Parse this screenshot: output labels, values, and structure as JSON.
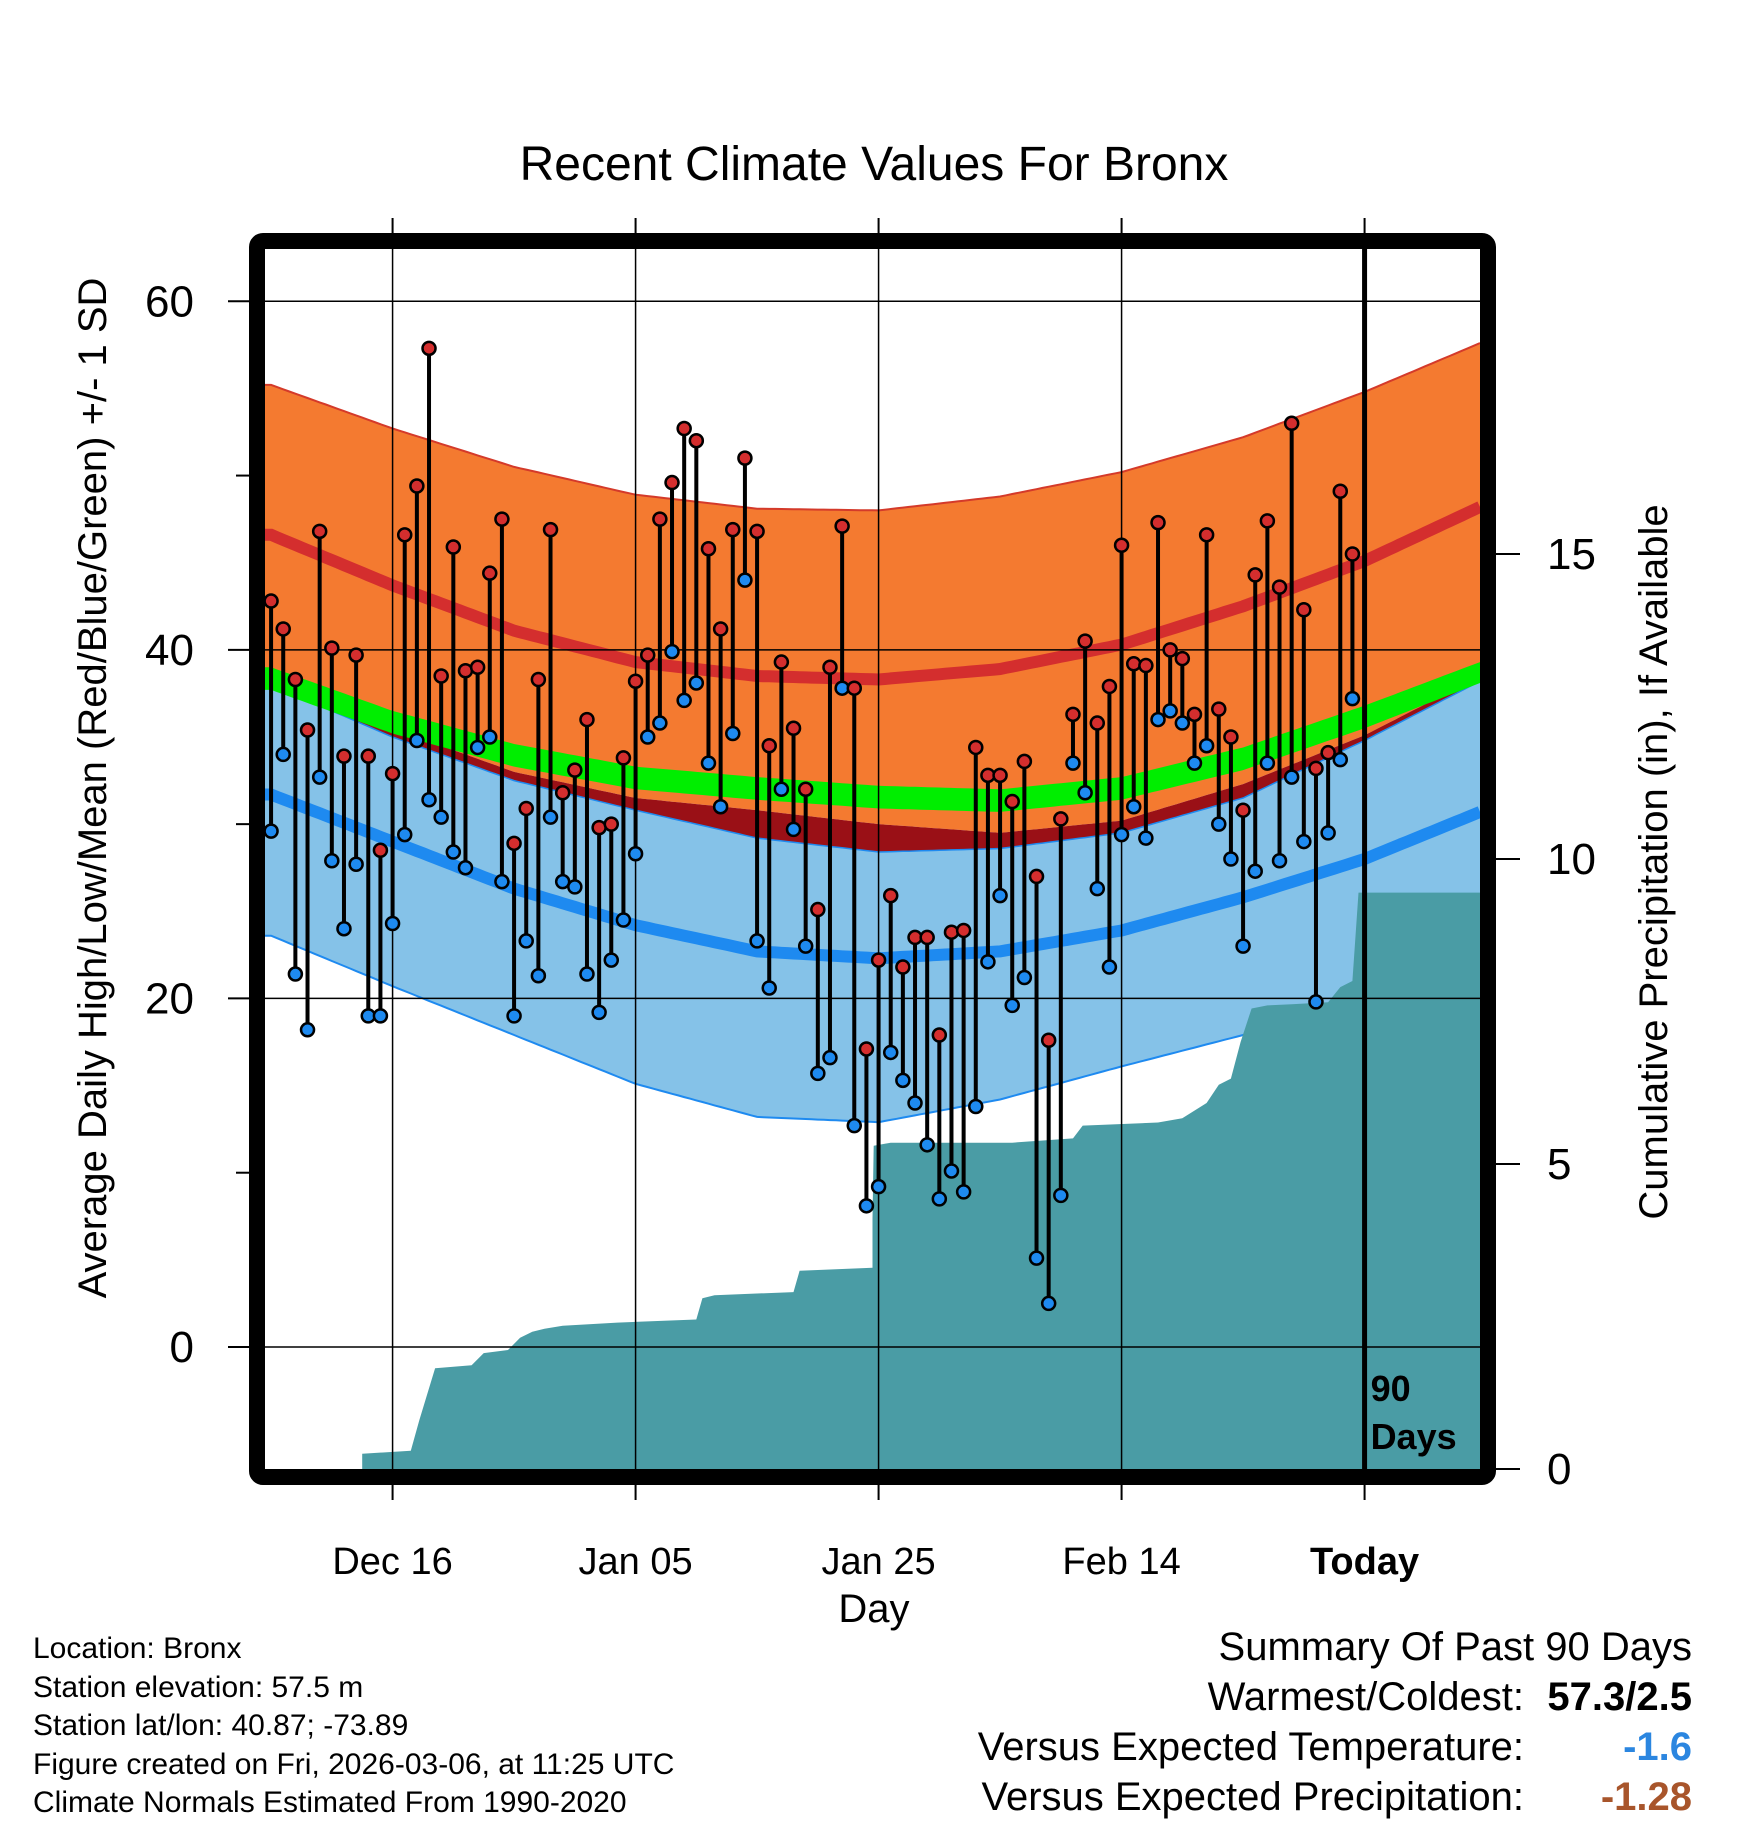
{
  "chart_data": {
    "type": "line",
    "title": "Recent Climate Values For Bronx",
    "xlabel": "Day",
    "ylabel": "Average Daily High/Low/Mean (Red/Blue/Green) +/- 1 SD",
    "ylabel_right": "Cumulative Precipitation (in), If Available",
    "x_ticks": [
      "Dec 16",
      "Jan 05",
      "Jan 25",
      "Feb 14",
      "Today"
    ],
    "x_tick_days": [
      10,
      30,
      50,
      70,
      90
    ],
    "xlim": [
      -0.5,
      99.5
    ],
    "ylim": [
      -7,
      63
    ],
    "y_ticks": [
      0,
      20,
      40,
      60
    ],
    "y_minor_ticks": [
      10,
      30,
      50
    ],
    "precip_ticks": [
      0,
      5,
      10,
      15
    ],
    "precip_ylim": [
      0,
      20
    ],
    "window_label": "90 Days",
    "series_colors": {
      "high_band": "#f47a30",
      "high_mean": "#d42e2e",
      "low_band": "#85c2e8",
      "low_mean": "#1e8af0",
      "mean_line": "#00ee00",
      "mean_band": "#9a1016",
      "precip": "#4a9ca5",
      "high_dot": "#d42e2e",
      "low_dot": "#1e8af0"
    },
    "normals": {
      "day": [
        0,
        10,
        20,
        30,
        40,
        50,
        60,
        70,
        80,
        90,
        99.5
      ],
      "high_upper": [
        55.2,
        52.7,
        50.5,
        48.9,
        48.1,
        48.0,
        48.8,
        50.2,
        52.2,
        54.8,
        57.6
      ],
      "high_mean": [
        46.6,
        43.7,
        41.1,
        39.3,
        38.5,
        38.3,
        38.9,
        40.3,
        42.5,
        45.1,
        48.2
      ],
      "high_lower": [
        38.5,
        35.5,
        33.0,
        31.5,
        30.8,
        30.0,
        29.5,
        30.2,
        32.3,
        35.1,
        38.5
      ],
      "mean_upper": [
        39.0,
        36.5,
        34.6,
        33.3,
        32.7,
        32.2,
        32.0,
        32.7,
        34.4,
        36.8,
        39.3
      ],
      "mean_lower": [
        37.7,
        35.2,
        33.3,
        32.0,
        31.4,
        30.9,
        30.7,
        31.4,
        33.1,
        35.5,
        38.1
      ],
      "low_upper": [
        38.0,
        35.0,
        32.5,
        30.8,
        29.2,
        28.4,
        28.6,
        29.5,
        31.5,
        34.8,
        38.2
      ],
      "low_mean": [
        31.7,
        29.0,
        26.3,
        24.2,
        22.7,
        22.3,
        22.7,
        23.9,
        25.8,
        28.0,
        30.7
      ],
      "low_lower": [
        23.6,
        20.7,
        17.9,
        15.1,
        13.2,
        12.9,
        14.2,
        16.1,
        17.9,
        20.2,
        22.9
      ]
    },
    "daily": {
      "high": [
        42.8,
        41.2,
        38.3,
        35.4,
        46.8,
        40.1,
        33.9,
        39.7,
        33.9,
        28.5,
        32.9,
        46.6,
        49.4,
        57.3,
        38.5,
        45.9,
        38.8,
        39.0,
        44.4,
        47.5,
        28.9,
        30.9,
        38.3,
        46.9,
        31.8,
        33.1,
        36.0,
        29.8,
        30.0,
        33.8,
        38.2,
        39.7,
        47.5,
        49.6,
        52.7,
        52.0,
        45.8,
        41.2,
        46.9,
        51.0,
        46.8,
        34.5,
        39.3,
        35.5,
        32.0,
        25.1,
        39.0,
        47.1,
        37.8,
        17.1,
        22.2,
        25.9,
        21.8,
        23.5,
        23.5,
        17.9,
        23.8,
        23.9,
        34.4,
        32.8,
        32.8,
        31.3,
        33.6,
        27.0,
        17.6,
        30.3,
        36.3,
        40.5,
        35.8,
        37.9,
        46.0,
        39.2,
        39.1,
        47.3,
        40.0,
        39.5,
        36.3,
        46.6,
        36.6,
        35.0,
        30.8,
        44.3,
        47.4,
        43.6,
        53.0,
        42.3,
        33.2,
        34.1,
        49.1,
        45.5
      ],
      "low": [
        29.6,
        34.0,
        21.4,
        18.2,
        32.7,
        27.9,
        24.0,
        27.7,
        19.0,
        19.0,
        24.3,
        29.4,
        34.8,
        31.4,
        30.4,
        28.4,
        27.5,
        34.4,
        35.0,
        26.7,
        19.0,
        23.3,
        21.3,
        30.4,
        26.7,
        26.4,
        21.4,
        19.2,
        22.2,
        24.5,
        28.3,
        35.0,
        35.8,
        39.9,
        37.1,
        38.1,
        33.5,
        31.0,
        35.2,
        44.0,
        23.3,
        20.6,
        32.0,
        29.7,
        23.0,
        15.7,
        16.6,
        37.8,
        12.7,
        8.1,
        9.2,
        16.9,
        15.3,
        14.0,
        11.6,
        8.5,
        10.1,
        8.9,
        13.8,
        22.1,
        25.9,
        19.6,
        21.2,
        5.1,
        2.5,
        8.7,
        33.5,
        31.8,
        26.3,
        21.8,
        29.4,
        31.0,
        29.2,
        36.0,
        36.5,
        35.8,
        33.5,
        34.5,
        30.0,
        28.0,
        23.0,
        27.3,
        33.5,
        27.9,
        32.7,
        29.0,
        19.8,
        29.5,
        33.7,
        37.2
      ]
    },
    "precip_cumulative": {
      "day": [
        -0.5,
        7.5,
        7.5,
        11.5,
        12.2,
        13.5,
        16.5,
        17.5,
        19.5,
        20.5,
        21.5,
        22.5,
        24.0,
        28.5,
        35.0,
        35.5,
        36.5,
        43.0,
        43.5,
        49.5,
        49.5,
        49.6,
        51.0,
        61.0,
        66.0,
        66.8,
        73.0,
        75.0,
        77.0,
        78.0,
        79.0,
        79.8,
        80.7,
        82.0,
        84.0,
        87.0,
        88.0,
        89.0,
        89.5,
        99.5
      ],
      "value": [
        0,
        0,
        0.25,
        0.3,
        0.8,
        1.65,
        1.7,
        1.9,
        1.95,
        2.15,
        2.25,
        2.3,
        2.35,
        2.4,
        2.45,
        2.8,
        2.85,
        2.9,
        3.25,
        3.3,
        4.1,
        5.3,
        5.35,
        5.35,
        5.42,
        5.63,
        5.68,
        5.75,
        6.0,
        6.3,
        6.4,
        7.0,
        7.55,
        7.6,
        7.62,
        7.65,
        7.9,
        8.0,
        9.45,
        9.45
      ]
    }
  },
  "footer": {
    "location": "Location: Bronx",
    "elevation": "Station elevation: 57.5 m",
    "latlon": "Station lat/lon: 40.87; -73.89",
    "created": "Figure created on Fri, 2026-03-06, at 11:25 UTC",
    "normals": "Climate Normals Estimated From 1990-2020"
  },
  "summary": {
    "title": "Summary Of Past 90 Days",
    "warmest_coldest_label": "Warmest/Coldest:",
    "warmest_coldest_value": "57.3/2.5",
    "temp_label": "Versus Expected Temperature:",
    "temp_value": "-1.6",
    "temp_color": "#2b86e0",
    "precip_label": "Versus Expected Precipitation:",
    "precip_value": "-1.28",
    "precip_color": "#a8552b"
  }
}
